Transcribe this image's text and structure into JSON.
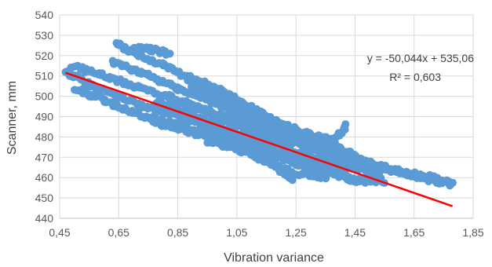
{
  "chart_data": {
    "type": "scatter",
    "title": "",
    "xlabel": "Vibration variance",
    "ylabel": "Scanner, mm",
    "xlim": [
      0.45,
      1.85
    ],
    "ylim": [
      440,
      540
    ],
    "x_ticks": [
      0.45,
      0.65,
      0.85,
      1.05,
      1.25,
      1.45,
      1.65,
      1.85
    ],
    "x_tick_labels": [
      "0,45",
      "0,65",
      "0,85",
      "1,05",
      "1,25",
      "1,45",
      "1,65",
      "1,85"
    ],
    "y_ticks": [
      440,
      450,
      460,
      470,
      480,
      490,
      500,
      510,
      520,
      530,
      540
    ],
    "y_tick_labels": [
      "440",
      "450",
      "460",
      "470",
      "480",
      "490",
      "500",
      "510",
      "520",
      "530",
      "540"
    ],
    "grid": true,
    "legend": "none",
    "point_color": "#5B9BD5",
    "trendline": {
      "slope": -50.044,
      "intercept": 535.06,
      "x_range": [
        0.47,
        1.78
      ],
      "color": "#FF0000",
      "equation": "y = -50,044x + 535,06",
      "r_squared": "R² = 0,603"
    },
    "series": [
      {
        "segments": [
          [
            [
              0.47,
              512
            ],
            [
              0.55,
              506
            ],
            [
              0.65,
              500
            ],
            [
              0.8,
              492
            ],
            [
              0.95,
              486
            ],
            [
              1.05,
              480
            ],
            [
              1.15,
              474
            ],
            [
              1.3,
              468
            ],
            [
              1.45,
              465
            ],
            [
              1.6,
              463
            ],
            [
              1.72,
              460
            ],
            [
              1.78,
              457
            ]
          ],
          [
            [
              0.49,
              515
            ],
            [
              0.58,
              511
            ],
            [
              0.7,
              505
            ],
            [
              0.85,
              498
            ],
            [
              1.0,
              490
            ],
            [
              1.15,
              482
            ],
            [
              1.3,
              474
            ],
            [
              1.45,
              466
            ],
            [
              1.55,
              458
            ]
          ],
          [
            [
              0.5,
              504
            ],
            [
              0.6,
              498
            ],
            [
              0.7,
              492
            ],
            [
              0.8,
              486
            ],
            [
              0.95,
              480
            ],
            [
              1.1,
              474
            ],
            [
              1.25,
              467
            ],
            [
              1.4,
              461
            ],
            [
              1.52,
              457
            ]
          ],
          [
            [
              0.63,
              517
            ],
            [
              0.7,
              513
            ],
            [
              0.8,
              507
            ],
            [
              0.9,
              501
            ],
            [
              1.0,
              495
            ],
            [
              1.1,
              488
            ],
            [
              1.2,
              482
            ],
            [
              1.3,
              477
            ],
            [
              1.4,
              472
            ],
            [
              1.5,
              467
            ],
            [
              1.6,
              463
            ],
            [
              1.7,
              459
            ],
            [
              1.77,
              457
            ]
          ],
          [
            [
              0.64,
              526
            ],
            [
              0.72,
              520
            ],
            [
              0.82,
              514
            ],
            [
              0.92,
              506
            ],
            [
              1.02,
              498
            ],
            [
              1.12,
              490
            ],
            [
              1.22,
              483
            ],
            [
              1.32,
              477
            ],
            [
              1.42,
              471
            ],
            [
              1.52,
              466
            ]
          ],
          [
            [
              0.7,
              524
            ],
            [
              0.76,
              523
            ],
            [
              0.82,
              521
            ]
          ],
          [
            [
              0.78,
              497
            ],
            [
              0.88,
              492
            ],
            [
              0.98,
              486
            ],
            [
              1.08,
              480
            ],
            [
              1.18,
              473
            ],
            [
              1.28,
              466
            ],
            [
              1.38,
              462
            ],
            [
              1.46,
              458
            ]
          ],
          [
            [
              0.88,
              510
            ],
            [
              0.98,
              504
            ],
            [
              1.08,
              496
            ],
            [
              1.18,
              488
            ],
            [
              1.28,
              482
            ],
            [
              1.38,
              478
            ],
            [
              1.42,
              486
            ]
          ],
          [
            [
              0.82,
              500
            ],
            [
              0.92,
              494
            ],
            [
              1.02,
              488
            ],
            [
              1.12,
              481
            ],
            [
              1.22,
              474
            ],
            [
              1.32,
              469
            ],
            [
              1.42,
              464
            ]
          ],
          [
            [
              0.75,
              490
            ],
            [
              0.85,
              486
            ],
            [
              0.95,
              482
            ],
            [
              1.05,
              476
            ],
            [
              1.15,
              470
            ],
            [
              1.24,
              458
            ]
          ],
          [
            [
              0.9,
              505
            ],
            [
              1.0,
              499
            ],
            [
              1.1,
              492
            ],
            [
              1.2,
              486
            ],
            [
              1.3,
              480
            ],
            [
              1.4,
              474
            ],
            [
              1.45,
              471
            ]
          ],
          [
            [
              0.95,
              478
            ],
            [
              1.05,
              474
            ],
            [
              1.15,
              468
            ],
            [
              1.25,
              462
            ],
            [
              1.35,
              460
            ]
          ]
        ]
      }
    ]
  }
}
